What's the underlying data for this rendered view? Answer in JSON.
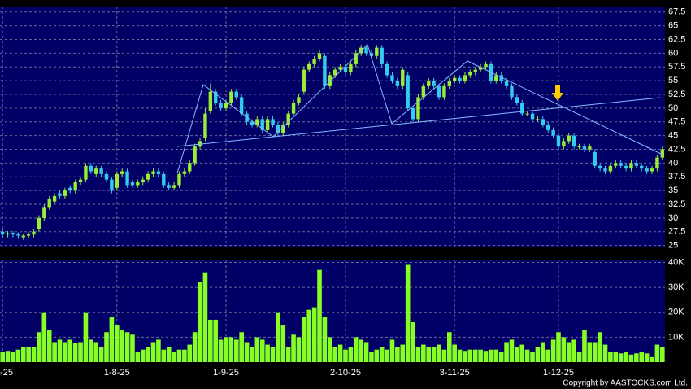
{
  "chart_data": [
    {
      "type": "candlestick",
      "open": [
        27.5,
        27,
        27.3,
        27,
        26.5,
        26.8,
        27,
        28,
        30,
        32,
        33,
        34.5,
        34,
        35.5,
        35,
        36.5,
        37,
        39.5,
        38,
        39,
        38,
        37,
        35.5,
        38,
        38.5,
        36.5,
        36,
        36.5,
        37,
        38,
        38.5,
        38,
        36,
        35.5,
        36,
        38,
        38.5,
        40,
        43,
        44.5,
        49.5,
        53,
        51,
        50,
        51,
        53,
        52,
        49,
        47.5,
        47,
        48,
        46,
        48,
        47,
        45.5,
        47,
        49,
        51,
        53,
        57,
        58,
        59,
        59.5,
        54,
        56,
        57,
        57.5,
        56.5,
        58,
        60,
        61,
        60,
        59.5,
        61,
        58,
        56,
        55,
        54,
        56,
        50,
        48,
        52,
        54,
        55,
        54,
        52,
        54,
        55,
        55.5,
        55,
        56,
        56.5,
        57,
        57.5,
        58,
        55,
        56,
        55,
        54,
        52,
        51,
        49,
        49,
        48,
        48,
        47,
        46,
        45,
        43,
        44,
        45,
        43,
        43,
        42.5,
        42,
        39.5,
        39,
        38.5,
        39.5,
        40,
        39.5,
        39,
        40,
        39.5,
        39,
        38.5,
        39,
        41
      ],
      "high": [
        28,
        27.6,
        27.6,
        27.4,
        27.2,
        27.4,
        28,
        30.5,
        32.5,
        34,
        34.5,
        35,
        35.5,
        36,
        37,
        37.5,
        40,
        40,
        39.5,
        39.5,
        38.5,
        37.5,
        38.5,
        39,
        39,
        37,
        37,
        37.5,
        38.5,
        39,
        39,
        38.5,
        36.5,
        36.5,
        38.5,
        39,
        40.5,
        43.5,
        44.5,
        50,
        54.5,
        53.5,
        51.5,
        51.5,
        53.5,
        53.5,
        52.5,
        49.5,
        48,
        48.5,
        48.5,
        48.5,
        48.5,
        47.5,
        47.5,
        49.5,
        51.5,
        52.5,
        57.5,
        58.5,
        59.5,
        60.5,
        60,
        56.5,
        57.5,
        58,
        58,
        58.5,
        60.5,
        61.5,
        61.5,
        60.5,
        61.5,
        61.5,
        58.5,
        56.5,
        55.5,
        57.5,
        56.5,
        50.5,
        52.5,
        54.5,
        55.5,
        55.5,
        54.5,
        54.5,
        55.5,
        56,
        56,
        56.5,
        57,
        57.5,
        58,
        58.5,
        58.5,
        56.5,
        56.5,
        55.5,
        54.5,
        52.5,
        51.5,
        49.5,
        49.5,
        48.5,
        48.5,
        47.5,
        46.5,
        45.5,
        44.5,
        45.5,
        45.5,
        43.5,
        43.5,
        43.5,
        42.5,
        40,
        39.5,
        40,
        40.5,
        40.5,
        40,
        40.5,
        40.5,
        40,
        39.5,
        39.5,
        41.5,
        43
      ],
      "low": [
        26.5,
        26.5,
        26.5,
        26.2,
        26,
        26.3,
        26.5,
        27.5,
        29.5,
        31.5,
        32.5,
        33.5,
        33.5,
        34.5,
        34.5,
        36,
        36.5,
        38,
        37.5,
        37.5,
        36.5,
        34.5,
        35,
        37.5,
        35.5,
        35.5,
        35.5,
        36,
        36.5,
        37.5,
        37.5,
        35.5,
        35,
        35,
        35.5,
        37.5,
        38,
        39.5,
        42.5,
        44,
        49,
        50.5,
        49.5,
        49.5,
        50.5,
        51.5,
        48.5,
        47,
        46.5,
        46.5,
        45.5,
        45.5,
        46.5,
        45,
        45,
        46.5,
        48.5,
        50.5,
        52.5,
        56.5,
        57.5,
        58.5,
        53.5,
        53.5,
        55.5,
        56.5,
        56,
        56,
        57.5,
        59.5,
        59.5,
        59,
        59,
        57.5,
        55.5,
        54.5,
        53.5,
        53.5,
        49.5,
        47.5,
        47.5,
        51.5,
        53.5,
        53.5,
        51.5,
        51.5,
        53.5,
        54.5,
        54.5,
        54.5,
        55.5,
        56,
        56.5,
        57,
        54.5,
        54.5,
        54.5,
        53.5,
        51.5,
        50.5,
        48.5,
        48.5,
        47.5,
        47.5,
        46.5,
        45.5,
        44.5,
        42.5,
        42.5,
        43.5,
        42.5,
        42.5,
        42,
        42,
        39,
        38.5,
        38,
        38,
        39,
        39,
        38.5,
        38.5,
        39,
        38.5,
        38,
        38,
        38.5,
        40.5
      ],
      "close": [
        27,
        27.2,
        27,
        26.8,
        26.8,
        27,
        27.5,
        30,
        32,
        33.5,
        34,
        34,
        35,
        35,
        36.5,
        37,
        39.5,
        38.5,
        39,
        38,
        37,
        35,
        38,
        38.5,
        36,
        36,
        36.5,
        37,
        38,
        38.5,
        38,
        36,
        35.5,
        36,
        38,
        38.5,
        40,
        43,
        44,
        49,
        53,
        51,
        50,
        51,
        53,
        52,
        49,
        47.5,
        47,
        48,
        46,
        48,
        47,
        45.5,
        47,
        49,
        51,
        52,
        57,
        58,
        59,
        60,
        54,
        56,
        57,
        57.5,
        56.5,
        58,
        60,
        61,
        60,
        59.5,
        61,
        58,
        56,
        55,
        54,
        57,
        50,
        48,
        52,
        54,
        55,
        54,
        52,
        54,
        55,
        55.5,
        55,
        56,
        56.5,
        57,
        57.5,
        58,
        55,
        56,
        55,
        54,
        52,
        51,
        49,
        49,
        48,
        48,
        47,
        46,
        45,
        43,
        44,
        45,
        43,
        43,
        42.5,
        43,
        39.5,
        39,
        38.5,
        39.5,
        40,
        39.5,
        39,
        40,
        39.5,
        39,
        38.5,
        39,
        41,
        42.5
      ],
      "up_color": "#99ee33",
      "down_color": "#33ccee",
      "ylim": [
        24.8,
        68.5
      ],
      "yticks": [
        25,
        27.5,
        30,
        32.5,
        35,
        37.5,
        40,
        42.5,
        45,
        47.5,
        50,
        52.5,
        55,
        57.5,
        60,
        62.5,
        65,
        67.5
      ],
      "grid": true
    },
    {
      "type": "bar",
      "categories": [
        "-25",
        null,
        null,
        null,
        null,
        null,
        null,
        null,
        null,
        null,
        null,
        null,
        null,
        null,
        null,
        null,
        null,
        null,
        null,
        null,
        null,
        null,
        "1-8-25",
        null,
        null,
        null,
        null,
        null,
        null,
        null,
        null,
        null,
        null,
        null,
        null,
        null,
        null,
        null,
        null,
        null,
        null,
        null,
        null,
        "1-9-25",
        null,
        null,
        null,
        null,
        null,
        null,
        null,
        null,
        null,
        null,
        null,
        null,
        null,
        null,
        null,
        null,
        null,
        null,
        null,
        null,
        null,
        null,
        "2-10-25",
        null,
        null,
        null,
        null,
        null,
        null,
        null,
        null,
        null,
        null,
        null,
        null,
        null,
        null,
        null,
        null,
        null,
        null,
        null,
        null,
        "3-11-25",
        null,
        null,
        null,
        null,
        null,
        null,
        null,
        null,
        null,
        null,
        null,
        null,
        null,
        null,
        null,
        null,
        null,
        null,
        null,
        "1-12-25",
        null,
        null,
        null,
        null,
        null,
        null,
        null,
        null,
        null,
        null,
        null,
        null,
        null,
        null,
        null,
        null,
        null,
        null,
        null,
        null
      ],
      "values": [
        4000,
        4500,
        4000,
        5000,
        6000,
        6000,
        6000,
        12000,
        20000,
        13000,
        8000,
        9000,
        8000,
        9000,
        7500,
        8000,
        20000,
        9000,
        8000,
        6000,
        12000,
        18000,
        15000,
        13000,
        12000,
        11000,
        4000,
        5000,
        6000,
        8000,
        9000,
        5000,
        6000,
        4000,
        5000,
        5000,
        7000,
        12000,
        32000,
        36000,
        17000,
        17000,
        9000,
        10000,
        10000,
        9000,
        12000,
        8000,
        6000,
        10000,
        9000,
        7000,
        6000,
        20000,
        15000,
        6000,
        11000,
        10000,
        18000,
        21000,
        22000,
        37000,
        18000,
        10000,
        6000,
        7000,
        5000,
        6000,
        10000,
        9000,
        8000,
        4000,
        5000,
        6000,
        5000,
        9000,
        6000,
        7000,
        39000,
        16000,
        6000,
        7000,
        6000,
        6000,
        7000,
        5000,
        12000,
        7000,
        5000,
        4500,
        5000,
        5000,
        5000,
        4500,
        5000,
        5000,
        4000,
        8000,
        9000,
        6000,
        7000,
        5000,
        4000,
        6000,
        8000,
        5000,
        9000,
        12000,
        10000,
        8000,
        9000,
        4000,
        13000,
        8000,
        8000,
        12000,
        7000,
        4000,
        4000,
        3500,
        4000,
        3000,
        3500,
        4000,
        3500,
        2000,
        7000,
        6000
      ],
      "color": "#88ff22",
      "ylim": [
        0,
        40800
      ],
      "yticks": [
        {
          "value": 10000,
          "label": "10K"
        },
        {
          "value": 20000,
          "label": "20K"
        },
        {
          "value": 30000,
          "label": "30K"
        },
        {
          "value": 40000,
          "label": "40K"
        }
      ],
      "grid": true
    }
  ],
  "copyright": "Copyright by AASTOCKS.com Ltd."
}
